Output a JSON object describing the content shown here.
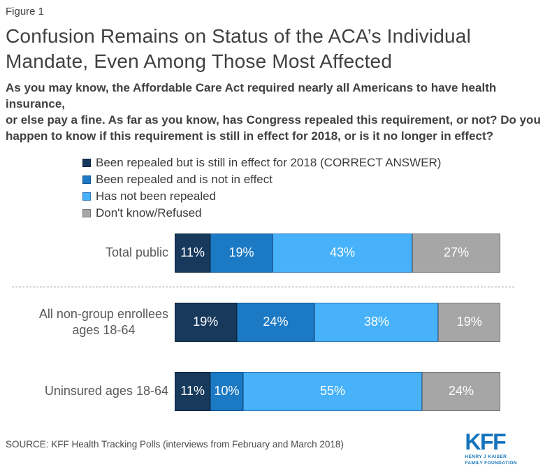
{
  "figure_label": "Figure 1",
  "title": "Confusion Remains on Status of the ACA’s Individual\nMandate, Even Among Those Most Affected",
  "subtitle": "As you may know, the Affordable Care Act required nearly all Americans to have health insurance,\nor else pay a fine. As far as you know, has Congress repealed this requirement, or not? Do you\nhappen to know if this requirement is still in effect for 2018, or is it no longer in effect?",
  "chart_data": {
    "type": "bar",
    "orientation": "horizontal",
    "stacked": true,
    "xlim": [
      0,
      100
    ],
    "value_suffix": "%",
    "legend_position": "top",
    "grid": false,
    "divider_after_row": 0,
    "categories": [
      "Total public",
      "All non-group enrollees\nages 18-64",
      "Uninsured ages 18-64"
    ],
    "series": [
      {
        "name": "Been repealed but is still in effect for 2018 (CORRECT ANSWER)",
        "color": "#17395C",
        "border_color": "#0d2338",
        "values": [
          11,
          19,
          11
        ]
      },
      {
        "name": "Been repealed and is not in effect",
        "color": "#1C79C4",
        "border_color": "#11568f",
        "values": [
          19,
          24,
          10
        ]
      },
      {
        "name": "Has not been repealed",
        "color": "#47B2F9",
        "border_color": "#2e75b6",
        "values": [
          43,
          38,
          55
        ]
      },
      {
        "name": "Don't know/Refused",
        "color": "#A6A6A6",
        "border_color": "#767676",
        "values": [
          27,
          19,
          24
        ]
      }
    ]
  },
  "footer": {
    "source": "SOURCE: KFF Health Tracking Polls (interviews from February and March 2018)",
    "logo": {
      "text": "KFF",
      "subtext_line1": "HENRY J KAISER",
      "subtext_line2": "FAMILY FOUNDATION",
      "color": "#1374BC"
    }
  }
}
